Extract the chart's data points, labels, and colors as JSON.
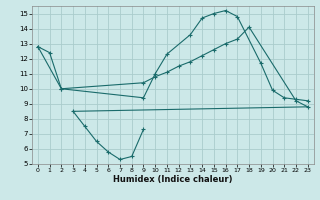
{
  "xlabel": "Humidex (Indice chaleur)",
  "bg_color": "#cce8e8",
  "grid_color": "#aacccc",
  "line_color": "#1a6b6b",
  "xlim": [
    -0.5,
    23.5
  ],
  "ylim": [
    5,
    15.5
  ],
  "yticks": [
    5,
    6,
    7,
    8,
    9,
    10,
    11,
    12,
    13,
    14,
    15
  ],
  "xticks": [
    0,
    1,
    2,
    3,
    4,
    5,
    6,
    7,
    8,
    9,
    10,
    11,
    12,
    13,
    14,
    15,
    16,
    17,
    18,
    19,
    20,
    21,
    22,
    23
  ],
  "line1_x": [
    0,
    1,
    2,
    9,
    10,
    11,
    13,
    14,
    15,
    16,
    17,
    19,
    20,
    21,
    22,
    23
  ],
  "line1_y": [
    12.8,
    12.4,
    10.0,
    9.4,
    11.0,
    12.3,
    13.6,
    14.7,
    15.0,
    15.2,
    14.8,
    11.7,
    9.9,
    9.4,
    9.3,
    9.2
  ],
  "line2_x": [
    0,
    2,
    9,
    10,
    11,
    12,
    13,
    14,
    15,
    16,
    17,
    18,
    22,
    23
  ],
  "line2_y": [
    12.8,
    10.0,
    10.4,
    10.8,
    11.1,
    11.5,
    11.8,
    12.2,
    12.6,
    13.0,
    13.3,
    14.1,
    9.2,
    8.8
  ],
  "line3_x": [
    3,
    23
  ],
  "line3_y": [
    8.5,
    8.8
  ],
  "line4_x": [
    3,
    4,
    5,
    6,
    7,
    8,
    9
  ],
  "line4_y": [
    8.5,
    7.5,
    6.5,
    5.8,
    5.3,
    5.5,
    7.3
  ]
}
